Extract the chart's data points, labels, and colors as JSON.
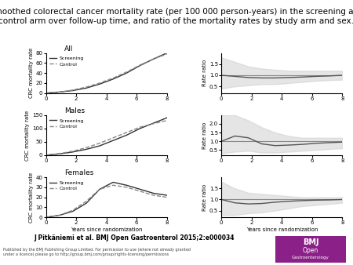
{
  "title": "Smoothed colorectal cancer mortality rate (per 100 000 person-years) in the screening and\ncontrol arm over follow-up time, and ratio of the mortality rates by study arm and sex.",
  "title_fontsize": 7.5,
  "journal_text": "J Pitkäniemi et al. BMJ Open Gastroenterol 2015;2:e000034",
  "panel_titles": [
    "All",
    "Males",
    "Females"
  ],
  "left_ylabel": "CRC mortality rate",
  "right_ylabel": "Rate ratio",
  "xlabel": "Years since randomization",
  "x_ticks": [
    0,
    2,
    4,
    6,
    8
  ],
  "legend_labels": [
    "Screening",
    "Control"
  ],
  "screening_color": "#333333",
  "control_color": "#888888",
  "ci_color": "#cccccc",
  "ratio_color": "#555555",
  "hline_color": "#888888",
  "background_color": "#ffffff",
  "all_screening_y": [
    0,
    2,
    5,
    10,
    18,
    28,
    40,
    55,
    68,
    80
  ],
  "all_control_y": [
    0,
    2,
    6,
    12,
    20,
    30,
    42,
    56,
    68,
    78
  ],
  "all_ylim": [
    0,
    80
  ],
  "all_yticks": [
    0,
    20,
    40,
    60,
    80
  ],
  "all_ratio_y": [
    1.0,
    0.95,
    0.9,
    0.88,
    0.88,
    0.9,
    0.92,
    0.95,
    0.97,
    1.0
  ],
  "all_ratio_ci_upper": [
    1.8,
    1.6,
    1.4,
    1.3,
    1.25,
    1.2,
    1.2,
    1.2,
    1.2,
    1.2
  ],
  "all_ratio_ci_lower": [
    0.4,
    0.5,
    0.55,
    0.6,
    0.6,
    0.65,
    0.7,
    0.75,
    0.78,
    0.8
  ],
  "all_ratio_ylim": [
    0.2,
    2.0
  ],
  "all_ratio_yticks": [
    0.5,
    1.0,
    1.5
  ],
  "males_screening_y": [
    0,
    5,
    12,
    22,
    35,
    55,
    75,
    100,
    120,
    140
  ],
  "males_control_y": [
    0,
    6,
    15,
    28,
    45,
    65,
    85,
    105,
    118,
    130
  ],
  "males_ylim": [
    0,
    150
  ],
  "males_yticks": [
    0,
    50,
    100,
    150
  ],
  "males_ratio_y": [
    1.0,
    1.3,
    1.2,
    0.85,
    0.75,
    0.78,
    0.82,
    0.88,
    0.92,
    0.95
  ],
  "males_ratio_ci_upper": [
    2.5,
    2.5,
    2.2,
    1.8,
    1.5,
    1.3,
    1.2,
    1.2,
    1.2,
    1.2
  ],
  "males_ratio_ci_lower": [
    0.3,
    0.4,
    0.45,
    0.35,
    0.35,
    0.4,
    0.45,
    0.5,
    0.55,
    0.6
  ],
  "males_ratio_ylim": [
    0.2,
    2.5
  ],
  "males_ratio_yticks": [
    0.5,
    1.0,
    1.5,
    2.0
  ],
  "females_screening_y": [
    0,
    2,
    6,
    14,
    28,
    35,
    32,
    28,
    24,
    22
  ],
  "females_control_y": [
    0,
    2,
    7,
    16,
    28,
    32,
    30,
    26,
    22,
    20
  ],
  "females_ylim": [
    0,
    40
  ],
  "females_yticks": [
    0,
    10,
    20,
    30,
    40
  ],
  "females_ratio_y": [
    1.0,
    0.85,
    0.8,
    0.82,
    0.88,
    0.92,
    0.95,
    0.97,
    0.98,
    1.0
  ],
  "females_ratio_ci_upper": [
    1.8,
    1.5,
    1.3,
    1.25,
    1.2,
    1.15,
    1.1,
    1.1,
    1.1,
    1.1
  ],
  "females_ratio_ci_lower": [
    0.3,
    0.3,
    0.38,
    0.42,
    0.5,
    0.6,
    0.7,
    0.75,
    0.8,
    0.85
  ],
  "females_ratio_ylim": [
    0.2,
    2.0
  ],
  "females_ratio_yticks": [
    0.5,
    1.0,
    1.5
  ]
}
